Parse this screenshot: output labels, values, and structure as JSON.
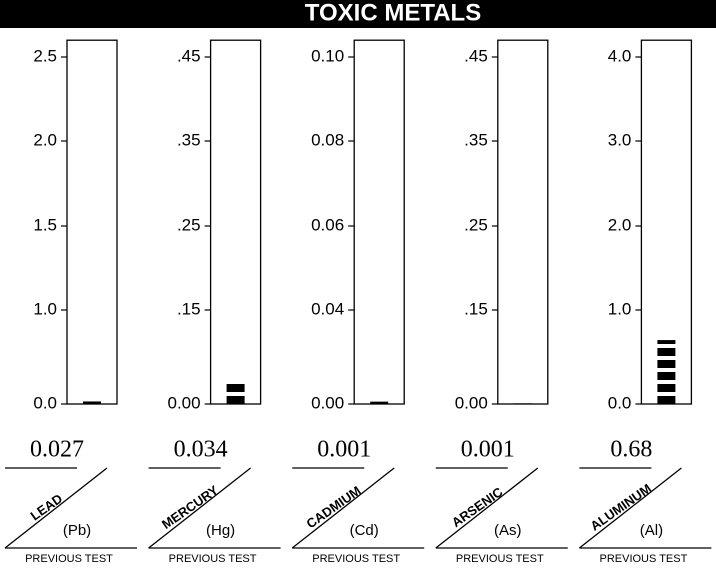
{
  "title": "TOXIC METALS",
  "chart_data": [
    {
      "type": "bar",
      "name": "LEAD",
      "symbol": "(Pb)",
      "value": 0.027,
      "color": "#000000",
      "ylim": [
        0,
        2.6
      ],
      "yticks": [
        {
          "value": 0,
          "label": "0.0"
        },
        {
          "value": 1,
          "label": "1.0"
        },
        1.5,
        {
          "value": 2,
          "label": "2.0"
        },
        2.5
      ],
      "footer": "PREVIOUS TEST"
    },
    {
      "type": "bar",
      "name": "MERCURY",
      "symbol": "(Hg)",
      "value": 0.034,
      "color": "#000000",
      "ylim": [
        0,
        0.47
      ],
      "yticks": [
        {
          "value": 0,
          "label": "0.00"
        },
        {
          "value": 0.15,
          "label": ".15"
        },
        {
          "value": 0.25,
          "label": ".25"
        },
        {
          "value": 0.35,
          "label": ".35"
        },
        {
          "value": 0.45,
          "label": ".45"
        }
      ],
      "footer": "PREVIOUS TEST"
    },
    {
      "type": "bar",
      "name": "CADMIUM",
      "symbol": "(Cd)",
      "value": 0.001,
      "color": "#000000",
      "ylim": [
        0,
        0.104
      ],
      "yticks": [
        {
          "value": 0,
          "label": "0.00"
        },
        0.04,
        0.06,
        0.08,
        {
          "value": 0.1,
          "label": "0.10"
        }
      ],
      "footer": "PREVIOUS TEST"
    },
    {
      "type": "bar",
      "name": "ARSENIC",
      "symbol": "(As)",
      "value": 0.001,
      "color": "#000000",
      "ylim": [
        0,
        0.47
      ],
      "yticks": [
        {
          "value": 0,
          "label": "0.00"
        },
        {
          "value": 0.15,
          "label": ".15"
        },
        {
          "value": 0.25,
          "label": ".25"
        },
        {
          "value": 0.35,
          "label": ".35"
        },
        {
          "value": 0.45,
          "label": ".45"
        }
      ],
      "footer": "PREVIOUS TEST"
    },
    {
      "type": "bar",
      "name": "ALUMINUM",
      "symbol": "(Al)",
      "value": 0.68,
      "color": "#000000",
      "ylim": [
        0,
        4.2
      ],
      "yticks": [
        {
          "value": 0,
          "label": "0.0"
        },
        {
          "value": 1,
          "label": "1.0"
        },
        {
          "value": 2,
          "label": "2.0"
        },
        {
          "value": 3,
          "label": "3.0"
        },
        {
          "value": 4,
          "label": "4.0"
        }
      ],
      "footer": "PREVIOUS TEST"
    }
  ]
}
